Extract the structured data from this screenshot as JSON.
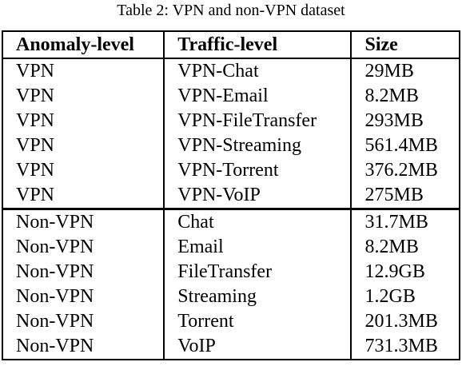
{
  "caption": "Table 2: VPN and non-VPN dataset",
  "table": {
    "headers": [
      "Anomaly-level",
      "Traffic-level",
      "Size"
    ],
    "rows": [
      [
        "VPN",
        "VPN-Chat",
        "29MB"
      ],
      [
        "VPN",
        "VPN-Email",
        "8.2MB"
      ],
      [
        "VPN",
        "VPN-FileTransfer",
        "293MB"
      ],
      [
        "VPN",
        "VPN-Streaming",
        "561.4MB"
      ],
      [
        "VPN",
        "VPN-Torrent",
        "376.2MB"
      ],
      [
        "VPN",
        "VPN-VoIP",
        "275MB"
      ],
      [
        "Non-VPN",
        "Chat",
        "31.7MB"
      ],
      [
        "Non-VPN",
        "Email",
        "8.2MB"
      ],
      [
        "Non-VPN",
        "FileTransfer",
        "12.9GB"
      ],
      [
        "Non-VPN",
        "Streaming",
        "1.2GB"
      ],
      [
        "Non-VPN",
        "Torrent",
        "201.3MB"
      ],
      [
        "Non-VPN",
        "VoIP",
        "731.3MB"
      ]
    ]
  }
}
